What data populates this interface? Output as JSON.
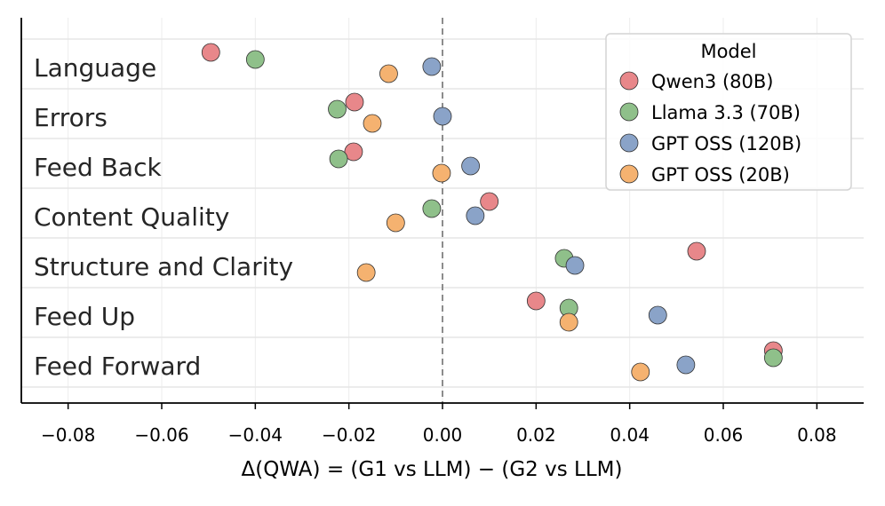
{
  "chart_data": {
    "type": "scatter",
    "xlabel": "Δ(QWA) = (G1 vs LLM) − (G2 vs LLM)",
    "xlim": [
      -0.09,
      0.09
    ],
    "xticks": [
      -0.08,
      -0.06,
      -0.04,
      -0.02,
      0.0,
      0.02,
      0.04,
      0.06,
      0.08
    ],
    "xtick_labels": [
      "−0.08",
      "−0.06",
      "−0.04",
      "−0.02",
      "0.00",
      "0.02",
      "0.04",
      "0.06",
      "0.08"
    ],
    "reference_line_x": 0,
    "grid": true,
    "categories": [
      "Language",
      "Errors",
      "Feed Back",
      "Content Quality",
      "Structure and Clarity",
      "Feed Up",
      "Feed Forward"
    ],
    "legend": {
      "title": "Model",
      "position": "top-right"
    },
    "series": [
      {
        "name": "Qwen3 (80B)",
        "color": "#e8878a",
        "values": [
          -0.0495,
          -0.0188,
          -0.019,
          0.01,
          0.0543,
          0.02,
          0.0707
        ]
      },
      {
        "name": "Llama 3.3 (70B)",
        "color": "#8fc08a",
        "values": [
          -0.04,
          -0.0225,
          -0.0222,
          -0.0023,
          0.026,
          0.027,
          0.0707
        ]
      },
      {
        "name": "GPT OSS (120B)",
        "color": "#8aa3c8",
        "values": [
          -0.0023,
          0.0,
          0.006,
          0.007,
          0.0283,
          0.046,
          0.052
        ]
      },
      {
        "name": "GPT OSS (20B)",
        "color": "#f5b270",
        "values": [
          -0.0115,
          -0.015,
          -0.0002,
          -0.01,
          -0.0163,
          0.027,
          0.0423
        ]
      }
    ]
  }
}
